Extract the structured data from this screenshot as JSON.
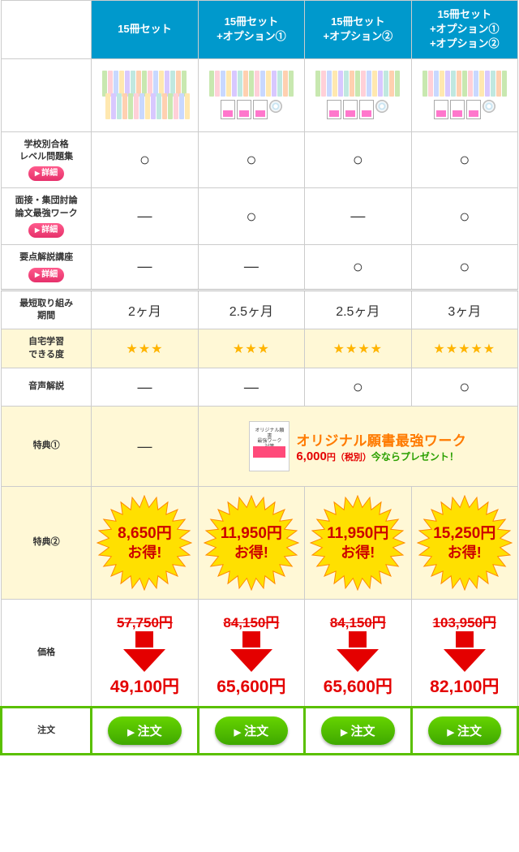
{
  "columns": [
    {
      "title": "15冊セット"
    },
    {
      "title": "15冊セット\n+オプション①"
    },
    {
      "title": "15冊セット\n+オプション②"
    },
    {
      "title": "15冊セット\n+オプション①\n+オプション②"
    }
  ],
  "rows": {
    "r1": {
      "label": "学校別合格\nレベル問題集",
      "detail": "詳細",
      "vals": [
        "○",
        "○",
        "○",
        "○"
      ]
    },
    "r2": {
      "label": "面接・集団討論\n論文最強ワーク",
      "detail": "詳細",
      "vals": [
        "—",
        "○",
        "—",
        "○"
      ]
    },
    "r3": {
      "label": "要点解説講座",
      "detail": "詳細",
      "vals": [
        "—",
        "—",
        "○",
        "○"
      ]
    },
    "r4": {
      "label": "最短取り組み\n期間",
      "vals": [
        "2ヶ月",
        "2.5ヶ月",
        "2.5ヶ月",
        "3ヶ月"
      ]
    },
    "r5": {
      "label": "自宅学習\nできる度",
      "stars": [
        3,
        3,
        4,
        5
      ]
    },
    "r6": {
      "label": "音声解説",
      "vals": [
        "—",
        "—",
        "○",
        "○"
      ]
    },
    "r7": {
      "label": "特典①",
      "first": "—"
    },
    "r8": {
      "label": "特典②",
      "bursts": [
        {
          "price": "8,650円",
          "save": "お得!"
        },
        {
          "price": "11,950円",
          "save": "お得!"
        },
        {
          "price": "11,950円",
          "save": "お得!"
        },
        {
          "price": "15,250円",
          "save": "お得!"
        }
      ]
    },
    "r9": {
      "label": "価格",
      "prices": [
        {
          "old": "57,750円",
          "new": "49,100円"
        },
        {
          "old": "84,150円",
          "new": "65,600円"
        },
        {
          "old": "84,150円",
          "new": "65,600円"
        },
        {
          "old": "103,950円",
          "new": "82,100円"
        }
      ]
    },
    "r10": {
      "label": "注文",
      "btn": "注文"
    }
  },
  "bonus": {
    "book_label": "オリジナル願書\n最強ワーク\n対策",
    "title": "オリジナル願書最強ワーク",
    "price": "6,000",
    "price_suffix": "円（税別）",
    "present": "今ならプレゼント！"
  },
  "colors": {
    "header_bg": "#0099cc",
    "yellow_bg": "#fff8d6",
    "star": "#ffb400",
    "burst_fill": "#ffe000",
    "burst_stroke": "#ff8a00",
    "red": "#e40000",
    "green_btn": "#4fb800",
    "order_border": "#5ac000",
    "book_colors": [
      "#c8e8b0",
      "#ffd0d8",
      "#c8d8ff",
      "#ffe8b0",
      "#d8c8ff",
      "#c0e8e0",
      "#ffd0b0"
    ]
  }
}
